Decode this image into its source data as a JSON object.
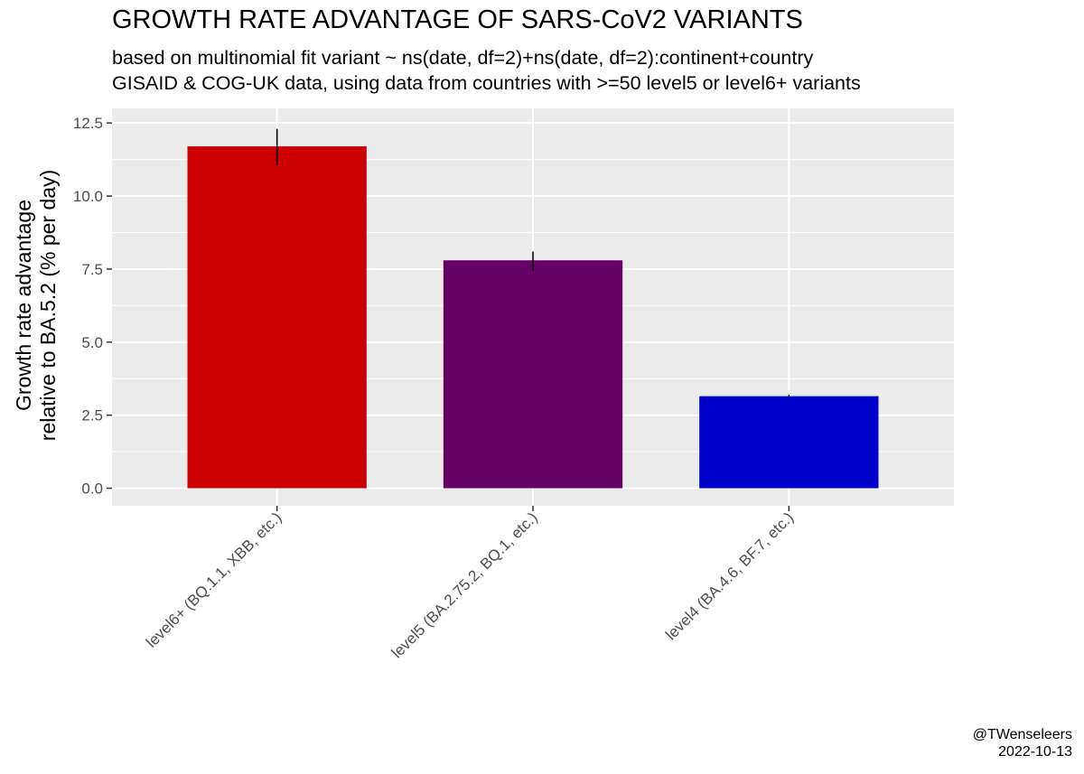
{
  "title": "GROWTH RATE ADVANTAGE OF SARS-CoV2 VARIANTS",
  "subtitle_lines": [
    "based on multinomial fit variant ~ ns(date, df=2)+ns(date, df=2):continent+country",
    "GISAID & COG-UK data, using data from countries with >=50 level5 or level6+ variants"
  ],
  "ylabel_lines": [
    "Growth rate advantage",
    "relative to BA.5.2 (% per day)"
  ],
  "credit": {
    "author": "@TWenseleers",
    "date": "2022-10-13"
  },
  "chart_data": {
    "type": "bar",
    "categories": [
      "level6+ (BQ.1.1, XBB, etc.)",
      "level5 (BA.2.75.2, BQ.1, etc.)",
      "level4 (BA.4.6, BF.7, etc.)"
    ],
    "values": [
      11.7,
      7.8,
      3.15
    ],
    "error_low": [
      11.05,
      7.45,
      3.1
    ],
    "error_high": [
      12.3,
      8.1,
      3.2
    ],
    "colors": [
      "#cc0000",
      "#660066",
      "#0000cc"
    ],
    "yticks": [
      0.0,
      2.5,
      5.0,
      7.5,
      10.0,
      12.5
    ],
    "ytick_labels": [
      "0.0",
      "2.5",
      "5.0",
      "7.5",
      "10.0",
      "12.5"
    ],
    "ylim": [
      -0.6,
      13.0
    ],
    "panel_background": "#ebebeb",
    "grid_color": "#ffffff",
    "ylabel": "Growth rate advantage relative to BA.5.2 (% per day)",
    "xlabel": ""
  }
}
